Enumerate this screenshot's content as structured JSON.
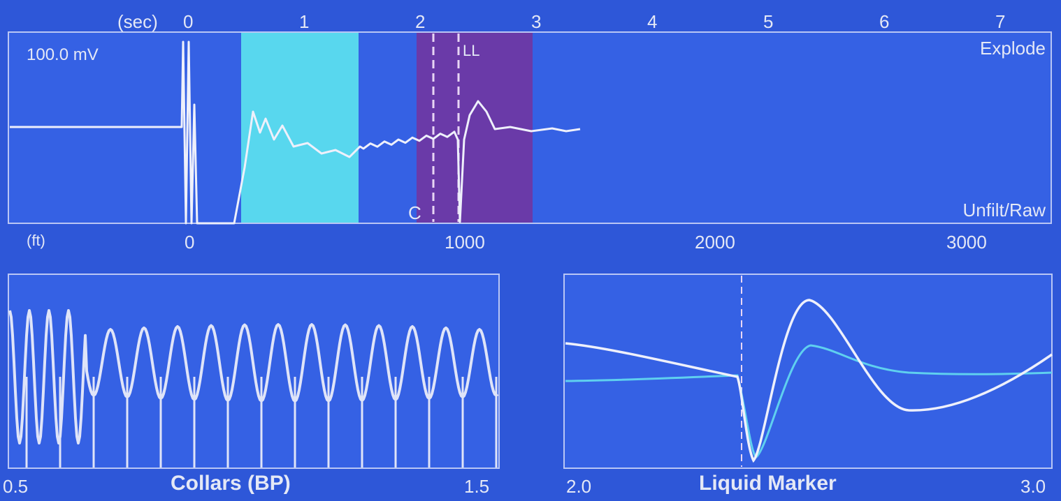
{
  "top_panel": {
    "time_unit": "(sec)",
    "time_ticks": [
      "0",
      "1",
      "2",
      "3",
      "4",
      "5",
      "6",
      "7"
    ],
    "scale": "100.0 mV",
    "mode_top": "Explode",
    "mode_bottom": "Unfilt/Raw",
    "marker_c": "C",
    "marker_ll": "LL",
    "depth_unit": "(ft)",
    "depth_ticks": [
      "0",
      "1000",
      "2000",
      "3000"
    ]
  },
  "collars_panel": {
    "title": "Collars (BP)",
    "x_start": "0.5",
    "x_end": "1.5"
  },
  "liquid_panel": {
    "title": "Liquid Marker",
    "x_start": "2.0",
    "x_end": "3.0"
  },
  "colors": {
    "background": "#2e57d8",
    "panel": "#3561e4",
    "highlight_cyan": "#58d7ee",
    "highlight_purple": "#6a3aa8",
    "trace": "#eef0fb",
    "trace_cyan": "#5fd0ef"
  }
}
